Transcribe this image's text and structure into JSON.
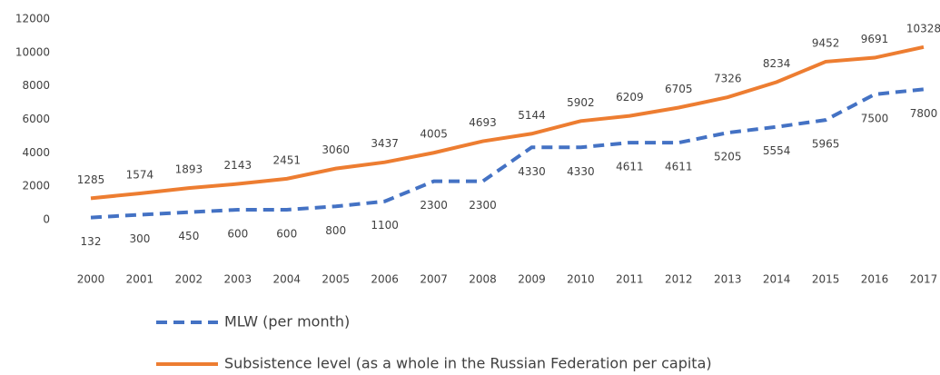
{
  "chart_data": {
    "type": "line",
    "categories": [
      "2000",
      "2001",
      "2002",
      "2003",
      "2004",
      "2005",
      "2006",
      "2007",
      "2008",
      "2009",
      "2010",
      "2011",
      "2012",
      "2013",
      "2014",
      "2015",
      "2016",
      "2017"
    ],
    "series": [
      {
        "name": "MLW (per month)",
        "color": "#4472c4",
        "dashed": true,
        "values": [
          132,
          300,
          450,
          600,
          600,
          800,
          1100,
          2300,
          2300,
          4330,
          4330,
          4611,
          4611,
          5205,
          5554,
          5965,
          7500,
          7800
        ]
      },
      {
        "name": "Subsistence level (as a whole in the Russian Federation per capita)",
        "color": "#ed7d31",
        "dashed": false,
        "values": [
          1285,
          1574,
          1893,
          2143,
          2451,
          3060,
          3437,
          4005,
          4693,
          5144,
          5902,
          6209,
          6705,
          7326,
          8234,
          9452,
          9691,
          10328
        ]
      }
    ],
    "ylim": [
      0,
      12000
    ],
    "yticks": [
      0,
      2000,
      4000,
      6000,
      8000,
      10000,
      12000
    ],
    "grid": false
  }
}
